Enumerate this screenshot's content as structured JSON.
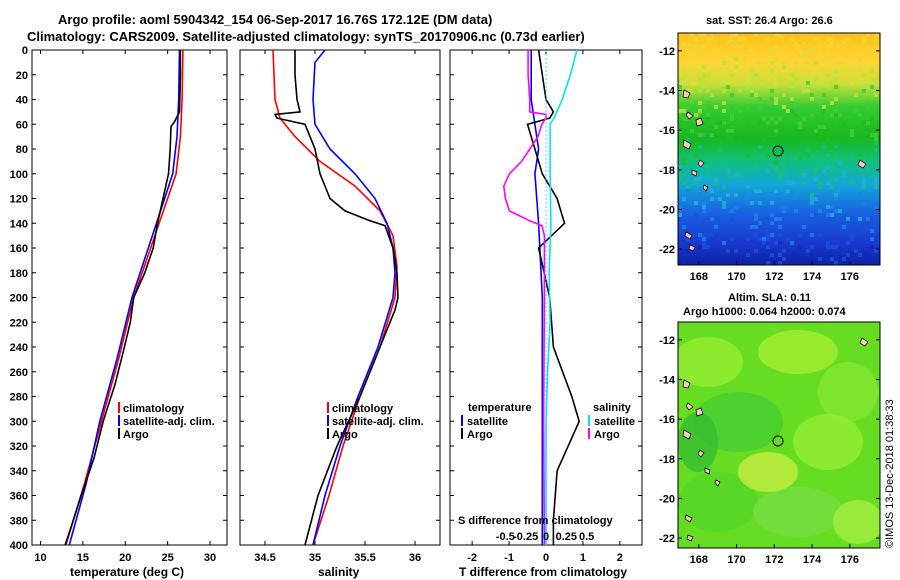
{
  "header": {
    "title_line1": "Argo profile: aoml 5904342_154 06-Sep-2017 16.76S 172.12E (DM data)",
    "title_line2": "Climatology: CARS2009. Satellite-adjusted climatology: synTS_20170906.nc (0.73d earlier)"
  },
  "colors": {
    "climatology": "#ff0000",
    "satellite": "#0000ff",
    "argo": "#000000",
    "temp_diff": "#ff00ff",
    "sal_diff": "#00e5ee"
  },
  "chart_data": [
    {
      "type": "line",
      "name": "temperature-profile",
      "xlabel": "temperature (deg C)",
      "ylabel": "",
      "xlim": [
        9,
        32
      ],
      "ylim": [
        400,
        0
      ],
      "x_ticks": [
        "10",
        "15",
        "20",
        "25",
        "30"
      ],
      "y_ticks": [
        "0",
        "20",
        "40",
        "60",
        "80",
        "100",
        "120",
        "140",
        "160",
        "180",
        "200",
        "220",
        "240",
        "260",
        "280",
        "300",
        "320",
        "340",
        "360",
        "380",
        "400"
      ],
      "legend": {
        "position": "middle-right",
        "items": [
          "climatology",
          "satellite-adj. clim.",
          "Argo"
        ]
      },
      "series": [
        {
          "name": "climatology",
          "depth": [
            0,
            40,
            70,
            100,
            150,
            200,
            250,
            300,
            350,
            400
          ],
          "values": [
            26.8,
            26.7,
            26.5,
            26.0,
            23.5,
            21.0,
            19.2,
            17.2,
            15.2,
            13.0
          ]
        },
        {
          "name": "satellite-adj. clim.",
          "depth": [
            0,
            40,
            70,
            100,
            150,
            200,
            250,
            300,
            350,
            400
          ],
          "values": [
            26.4,
            26.3,
            26.1,
            25.6,
            23.2,
            20.8,
            19.0,
            17.0,
            15.4,
            13.4
          ]
        },
        {
          "name": "Argo",
          "depth": [
            0,
            20,
            50,
            58,
            62,
            80,
            100,
            140,
            160,
            180,
            200,
            220,
            240,
            270,
            300,
            330,
            360,
            390,
            400
          ],
          "values": [
            26.5,
            26.5,
            26.4,
            25.8,
            25.4,
            25.3,
            25.1,
            23.8,
            23.3,
            22.3,
            21.0,
            20.6,
            19.9,
            18.8,
            17.4,
            16.3,
            14.8,
            13.4,
            12.9
          ]
        }
      ]
    },
    {
      "type": "line",
      "name": "salinity-profile",
      "xlabel": "salinity",
      "ylabel": "",
      "xlim": [
        34.25,
        36.25
      ],
      "ylim": [
        400,
        0
      ],
      "x_ticks": [
        "34.5",
        "35",
        "35.5",
        "36"
      ],
      "legend": {
        "position": "middle-right",
        "items": [
          "climatology",
          "satellite-adj. clim.",
          "Argo"
        ]
      },
      "series": [
        {
          "name": "climatology",
          "depth": [
            0,
            40,
            55,
            70,
            90,
            110,
            130,
            150,
            175,
            200,
            240,
            280,
            320,
            360,
            400
          ],
          "values": [
            34.58,
            34.6,
            34.65,
            34.8,
            35.05,
            35.4,
            35.65,
            35.78,
            35.82,
            35.8,
            35.65,
            35.45,
            35.28,
            35.14,
            34.98
          ]
        },
        {
          "name": "satellite-adj. clim.",
          "depth": [
            0,
            10,
            40,
            60,
            80,
            100,
            120,
            140,
            160,
            180,
            200,
            240,
            280,
            320,
            360,
            400
          ],
          "values": [
            35.1,
            35.0,
            34.98,
            35.0,
            35.15,
            35.4,
            35.6,
            35.72,
            35.78,
            35.8,
            35.78,
            35.63,
            35.43,
            35.25,
            35.1,
            34.98
          ]
        },
        {
          "name": "Argo",
          "depth": [
            0,
            20,
            40,
            50,
            52,
            55,
            60,
            80,
            100,
            120,
            130,
            138,
            142,
            160,
            180,
            200,
            210,
            240,
            280,
            320,
            360,
            400
          ],
          "values": [
            34.8,
            34.8,
            34.82,
            34.85,
            34.6,
            34.62,
            34.9,
            35.0,
            35.05,
            35.15,
            35.3,
            35.55,
            35.7,
            35.78,
            35.82,
            35.83,
            35.8,
            35.65,
            35.45,
            35.22,
            35.03,
            34.9
          ]
        }
      ]
    },
    {
      "type": "line",
      "name": "difference-profile",
      "xlabel": "T difference from climatology",
      "x2label": "S difference from climatology",
      "xlim": [
        -2.6,
        2.6
      ],
      "x_ticks": [
        "-2",
        "-1",
        "0",
        "1",
        "2"
      ],
      "x2_ticks": [
        "-0.5",
        "-0.25",
        "0",
        "0.25",
        "0.5"
      ],
      "legend_temperature": {
        "title": "temperature",
        "items": [
          "satellite",
          "Argo"
        ]
      },
      "legend_salinity": {
        "title": "salinity",
        "items": [
          "satellite",
          "Argo"
        ]
      },
      "series": [
        {
          "name": "temperature satellite",
          "depth": [
            0,
            40,
            60,
            80,
            100,
            140,
            200,
            300,
            400
          ],
          "values": [
            -0.4,
            -0.4,
            -0.3,
            -0.2,
            -0.3,
            -0.2,
            -0.1,
            -0.1,
            -0.1
          ]
        },
        {
          "name": "temperature Argo",
          "depth": [
            0,
            20,
            40,
            50,
            55,
            60,
            70,
            100,
            120,
            140,
            160,
            200,
            240,
            280,
            300,
            340,
            380,
            400
          ],
          "values": [
            -0.2,
            -0.1,
            0,
            0.2,
            0.1,
            -0.5,
            -0.4,
            -0.1,
            0.3,
            0.5,
            -0.2,
            0.1,
            0.2,
            0.7,
            0.9,
            0.3,
            0.2,
            0.2
          ]
        },
        {
          "name": "salinity satellite",
          "depth": [
            0,
            20,
            40,
            55,
            60,
            80,
            100,
            140,
            180,
            220,
            260,
            300,
            340,
            400
          ],
          "values": [
            0.38,
            0.3,
            0.2,
            0.1,
            0.05,
            0.05,
            0.05,
            0.06,
            0.04,
            0.05,
            0.02,
            0,
            0.0,
            0.0
          ]
        },
        {
          "name": "salinity Argo",
          "depth": [
            0,
            20,
            40,
            50,
            52,
            55,
            60,
            70,
            80,
            90,
            100,
            110,
            120,
            130,
            138,
            142,
            150,
            200,
            300,
            400
          ],
          "values": [
            -0.22,
            -0.22,
            -0.2,
            -0.2,
            0,
            0,
            -0.05,
            -0.1,
            -0.2,
            -0.3,
            -0.45,
            -0.52,
            -0.5,
            -0.45,
            -0.2,
            -0.05,
            -0.02,
            -0.02,
            -0.03,
            -0.02
          ]
        }
      ]
    }
  ],
  "maps": {
    "sst": {
      "title": "sat. SST: 26.4 Argo: 26.6",
      "y_ticks": [
        "-12",
        "-14",
        "-16",
        "-18",
        "-20",
        "-22"
      ],
      "x_ticks": [
        "168",
        "170",
        "172",
        "174",
        "176"
      ]
    },
    "sla": {
      "title_line1": "Altim. SLA: 0.11",
      "title_line2": "Argo h1000: 0.064 h2000: 0.074",
      "y_ticks": [
        "-12",
        "-14",
        "-16",
        "-18",
        "-20",
        "-22"
      ],
      "x_ticks": [
        "168",
        "170",
        "172",
        "174",
        "176"
      ]
    }
  },
  "footer": {
    "credit": "©IMOS 13-Dec-2018 01:38:33"
  }
}
